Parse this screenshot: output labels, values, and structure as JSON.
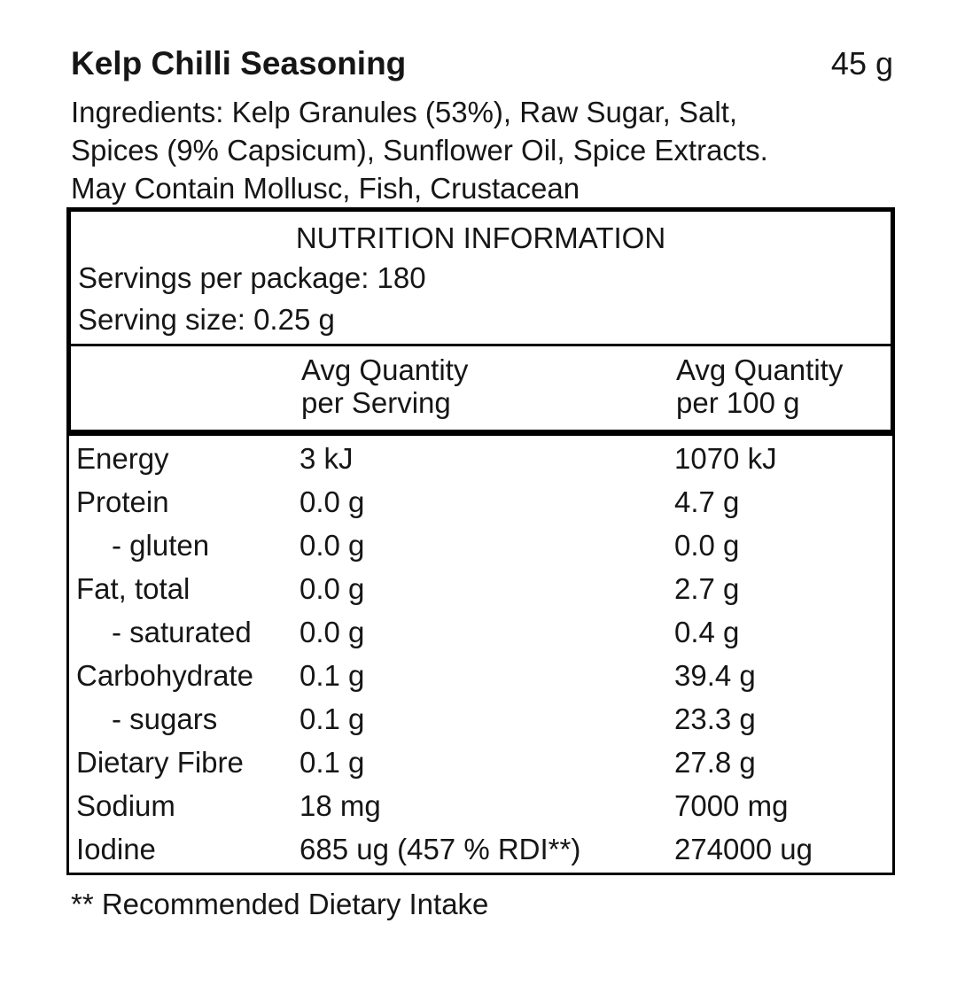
{
  "page": {
    "background": "#ffffff",
    "text_color": "#161616",
    "border_color": "#000000"
  },
  "product": {
    "name": "Kelp Chilli Seasoning",
    "net_weight": "45 g",
    "ingredients_lines": [
      "Ingredients: Kelp Granules (53%), Raw Sugar, Salt,",
      "Spices (9% Capsicum), Sunflower Oil, Spice Extracts.",
      "May Contain Mollusc, Fish, Crustacean"
    ]
  },
  "nutrition": {
    "title": "NUTRITION INFORMATION",
    "servings_per_package": "Servings per package: 180",
    "serving_size": "Serving size: 0.25 g",
    "column_headers": [
      {
        "line1": "Avg Quantity",
        "line2": "per Serving"
      },
      {
        "line1": "Avg Quantity",
        "line2": "per 100 g"
      }
    ],
    "rows": [
      {
        "nutrient": "Energy",
        "per_serving": "3 kJ",
        "per_100g": "1070 kJ",
        "indent": false
      },
      {
        "nutrient": "Protein",
        "per_serving": "0.0 g",
        "per_100g": "4.7 g",
        "indent": false
      },
      {
        "nutrient": "- gluten",
        "per_serving": "0.0 g",
        "per_100g": "0.0 g",
        "indent": true
      },
      {
        "nutrient": "Fat, total",
        "per_serving": "0.0 g",
        "per_100g": "2.7 g",
        "indent": false
      },
      {
        "nutrient": "- saturated",
        "per_serving": "0.0 g",
        "per_100g": "0.4 g",
        "indent": true
      },
      {
        "nutrient": "Carbohydrate",
        "per_serving": "0.1 g",
        "per_100g": "39.4 g",
        "indent": false
      },
      {
        "nutrient": "- sugars",
        "per_serving": "0.1 g",
        "per_100g": "23.3 g",
        "indent": true
      },
      {
        "nutrient": "Dietary Fibre",
        "per_serving": "0.1 g",
        "per_100g": "27.8 g",
        "indent": false
      },
      {
        "nutrient": "Sodium",
        "per_serving": "18 mg",
        "per_100g": "7000 mg",
        "indent": false
      },
      {
        "nutrient": "Iodine",
        "per_serving": "685 ug (457 % RDI**)",
        "per_100g": "274000 ug",
        "indent": false
      }
    ],
    "footnote": "** Recommended Dietary Intake"
  }
}
